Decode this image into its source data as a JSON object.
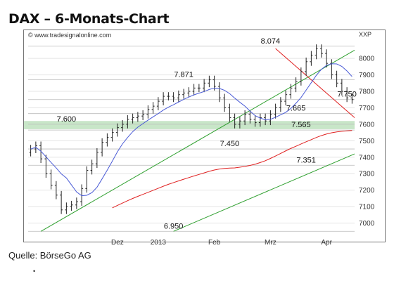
{
  "title": "DAX – 6-Monats-Chart",
  "source": "Quelle: BörseGo AG",
  "footer_marker": "•",
  "chart_data": {
    "type": "candlestick",
    "watermark": "© www.tradesignalonline.com",
    "unit": "XXP",
    "ylim": [
      6900,
      8120
    ],
    "y_ticks": [
      7000,
      7100,
      7200,
      7300,
      7400,
      7500,
      7600,
      7700,
      7800,
      7900,
      8000
    ],
    "x_tick_labels": [
      "Dez",
      "2013",
      "Feb",
      "Mrz",
      "Apr"
    ],
    "x_tick_index": [
      17,
      25,
      36,
      47,
      58
    ],
    "n_bars": 64,
    "close": [
      7450,
      7470,
      7390,
      7300,
      7230,
      7170,
      7080,
      7100,
      7110,
      7130,
      7210,
      7320,
      7360,
      7430,
      7490,
      7520,
      7550,
      7580,
      7600,
      7630,
      7640,
      7650,
      7660,
      7690,
      7710,
      7740,
      7770,
      7770,
      7760,
      7780,
      7790,
      7800,
      7820,
      7820,
      7850,
      7870,
      7830,
      7760,
      7700,
      7640,
      7600,
      7620,
      7660,
      7630,
      7610,
      7640,
      7620,
      7660,
      7700,
      7740,
      7780,
      7820,
      7860,
      7920,
      7980,
      8020,
      8060,
      8030,
      7970,
      7900,
      7850,
      7800,
      7760,
      7750
    ],
    "price_levels": [
      {
        "label": "8.074",
        "value": 8074
      },
      {
        "label": "7.871",
        "value": 7871
      },
      {
        "label": "7.750",
        "value": 7750
      },
      {
        "label": "7.665",
        "value": 7665
      },
      {
        "label": "7.600",
        "value": 7600
      },
      {
        "label": "7.565",
        "value": 7565
      },
      {
        "label": "7.450",
        "value": 7450
      },
      {
        "label": "7.351",
        "value": 7351
      },
      {
        "label": "6.950",
        "value": 6950
      }
    ],
    "support_zone": [
      7570,
      7620
    ],
    "colors": {
      "candles": "#222222",
      "moving_average_short": "#4a5bd6",
      "moving_average_long": "#e02020",
      "trend_channel": "#2fa02f",
      "downtrend": "#e02020",
      "support_zone": "#c8e6c8"
    },
    "grid": "horizontal"
  }
}
